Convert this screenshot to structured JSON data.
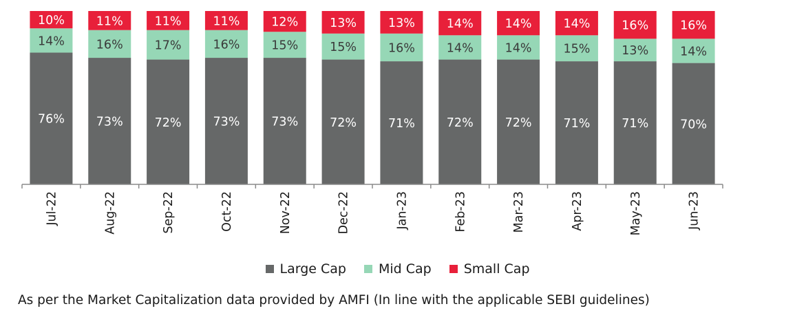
{
  "chart_data": {
    "type": "bar",
    "stacked": true,
    "ylim": [
      0,
      100
    ],
    "grid": false,
    "legend_position": "bottom",
    "categories": [
      "Jul-22",
      "Aug-22",
      "Sep-22",
      "Oct-22",
      "Nov-22",
      "Dec-22",
      "Jan-23",
      "Feb-23",
      "Mar-23",
      "Apr-23",
      "May-23",
      "Jun-23"
    ],
    "series": [
      {
        "name": "Large Cap",
        "color": "#666868",
        "values": [
          76,
          73,
          72,
          73,
          73,
          72,
          71,
          72,
          72,
          71,
          71,
          70
        ],
        "labels": [
          "76%",
          "73%",
          "72%",
          "73%",
          "73%",
          "72%",
          "71%",
          "72%",
          "72%",
          "71%",
          "71%",
          "70%"
        ]
      },
      {
        "name": "Mid Cap",
        "color": "#96d7b6",
        "values": [
          14,
          16,
          17,
          16,
          15,
          15,
          16,
          14,
          14,
          15,
          13,
          14
        ],
        "labels": [
          "14%",
          "16%",
          "17%",
          "16%",
          "15%",
          "15%",
          "16%",
          "14%",
          "14%",
          "15%",
          "13%",
          "14%"
        ]
      },
      {
        "name": "Small Cap",
        "color": "#e8203a",
        "values": [
          10,
          11,
          11,
          11,
          12,
          13,
          13,
          14,
          14,
          14,
          16,
          16
        ],
        "labels": [
          "10%",
          "11%",
          "11%",
          "11%",
          "12%",
          "13%",
          "13%",
          "14%",
          "14%",
          "14%",
          "16%",
          "16%"
        ]
      }
    ]
  },
  "footnote": "As per the Market Capitalization data provided by AMFI (In line with the applicable SEBI guidelines)"
}
